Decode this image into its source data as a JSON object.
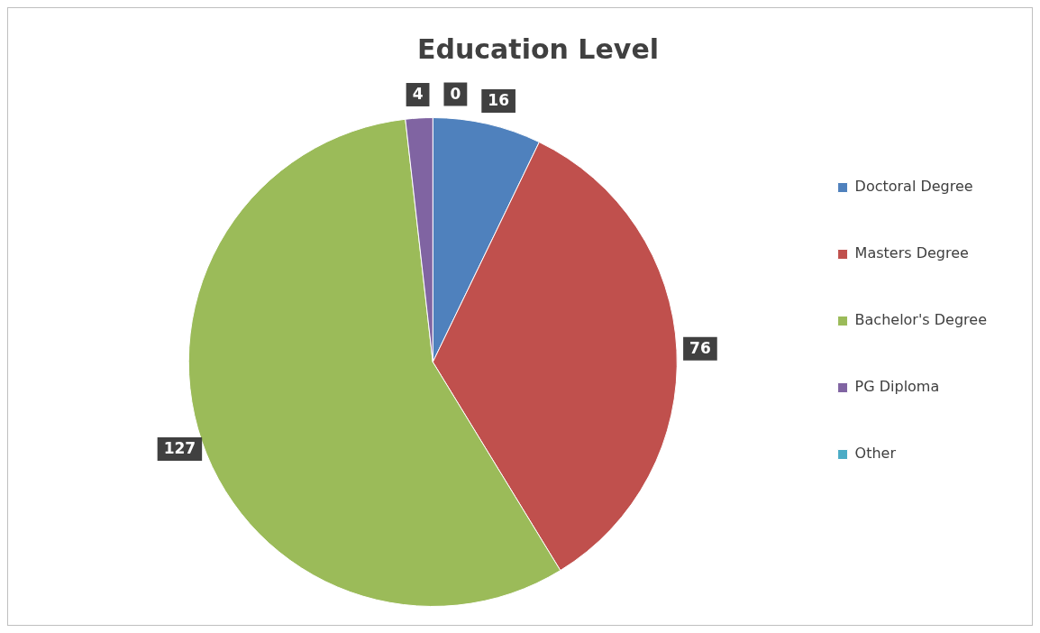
{
  "chart_data": {
    "type": "pie",
    "title": "Education Level",
    "categories": [
      "Doctoral Degree",
      "Masters Degree",
      "Bachelor's Degree",
      "PG Diploma",
      "Other"
    ],
    "values": [
      16,
      76,
      127,
      4,
      0
    ],
    "value_labels": [
      "16",
      "76",
      "127",
      "4",
      "0"
    ],
    "colors": [
      "#4f81bd",
      "#c0504d",
      "#9bbb59",
      "#8064a2",
      "#4bacc6"
    ],
    "legend": "right"
  }
}
